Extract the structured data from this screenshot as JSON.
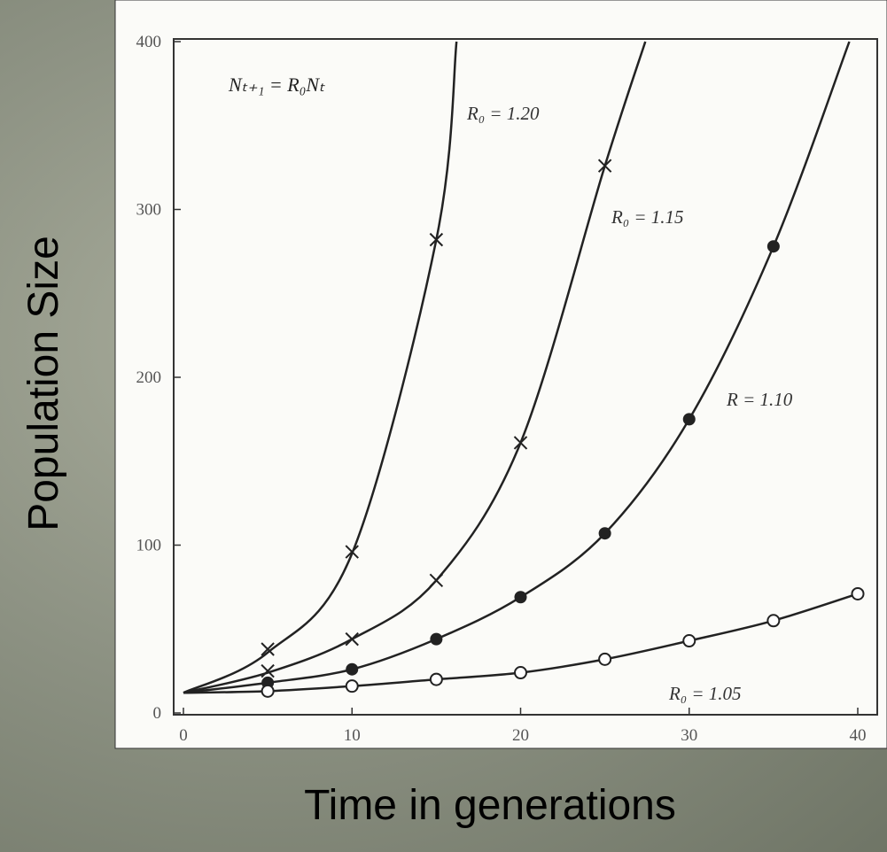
{
  "chart_data": {
    "type": "line",
    "equation": "Nₜ₊₁ = R₀Nₜ",
    "xlabel": "Time in generations",
    "ylabel": "Population Size",
    "xlim": [
      0,
      40
    ],
    "ylim": [
      0,
      400
    ],
    "xticks": [
      0,
      10,
      20,
      30,
      40
    ],
    "yticks": [
      0,
      100,
      200,
      300,
      400
    ],
    "series": [
      {
        "name": "R₀ = 1.20",
        "color": "#222222",
        "marker": "x",
        "x": [
          5,
          10,
          15
        ],
        "values": [
          38,
          96,
          282
        ],
        "curve_x": [
          0,
          5,
          10,
          15,
          16.2
        ],
        "curve_values": [
          12,
          36,
          95,
          282,
          400
        ]
      },
      {
        "name": "R₀ = 1.15",
        "color": "#222222",
        "marker": "x",
        "x": [
          5,
          10,
          15,
          20,
          25
        ],
        "values": [
          25,
          44,
          79,
          161,
          326
        ],
        "curve_x": [
          0,
          5,
          10,
          15,
          20,
          25,
          27.4
        ],
        "curve_values": [
          12,
          24,
          44,
          79,
          161,
          326,
          400
        ]
      },
      {
        "name": "R = 1.10",
        "color": "#222222",
        "marker": "dot",
        "x": [
          5,
          10,
          15,
          20,
          25,
          30,
          35
        ],
        "values": [
          18,
          26,
          44,
          69,
          107,
          175,
          278
        ],
        "curve_x": [
          0,
          5,
          10,
          15,
          20,
          25,
          30,
          35,
          39.5
        ],
        "curve_values": [
          12,
          18,
          26,
          44,
          69,
          107,
          175,
          278,
          400
        ]
      },
      {
        "name": "R₀ = 1.05",
        "color": "#222222",
        "marker": "circle",
        "x": [
          5,
          10,
          15,
          20,
          25,
          30,
          35,
          40
        ],
        "values": [
          13,
          16,
          20,
          24,
          32,
          43,
          55,
          71
        ],
        "curve_x": [
          0,
          5,
          10,
          15,
          20,
          25,
          30,
          35,
          40
        ],
        "curve_values": [
          12,
          13,
          16,
          20,
          24,
          32,
          43,
          55,
          71
        ]
      }
    ]
  }
}
